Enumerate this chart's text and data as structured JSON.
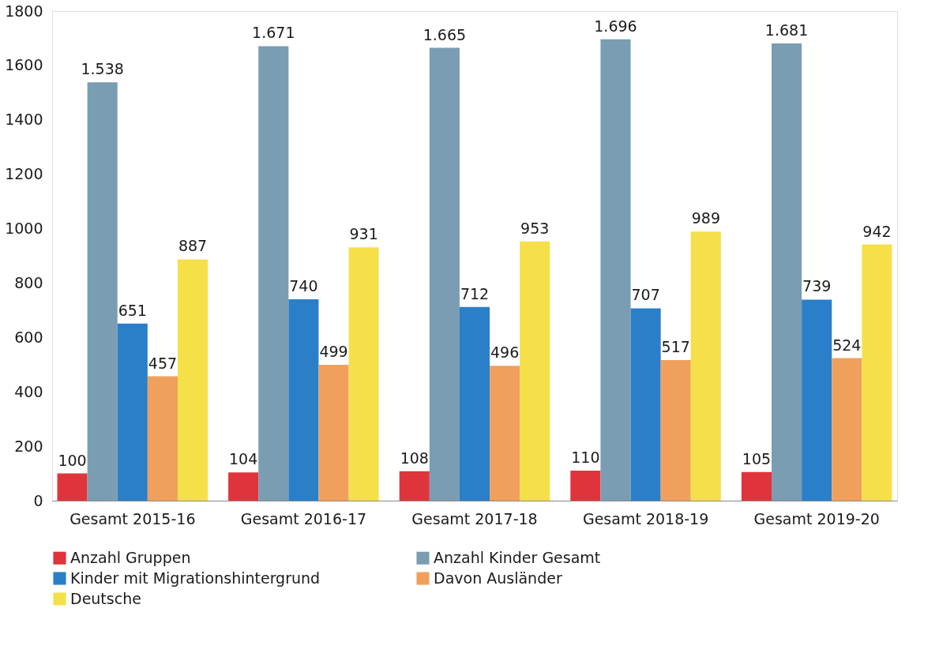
{
  "chart_data": {
    "type": "bar",
    "categories": [
      "Gesamt 2015-16",
      "Gesamt 2016-17",
      "Gesamt 2017-18",
      "Gesamt 2018-19",
      "Gesamt 2019-20"
    ],
    "series": [
      {
        "name": "Anzahl Gruppen",
        "color": "#e0343c",
        "values": [
          100,
          104,
          108,
          110,
          105
        ],
        "value_labels": [
          "100",
          "104",
          "108",
          "110",
          "105"
        ]
      },
      {
        "name": "Anzahl Kinder Gesamt",
        "color": "#7a9db2",
        "values": [
          1538,
          1671,
          1665,
          1696,
          1681
        ],
        "value_labels": [
          "1.538",
          "1.671",
          "1.665",
          "1.696",
          "1.681"
        ]
      },
      {
        "name": "Kinder mit Migrationshintergrund",
        "color": "#2a7fc8",
        "values": [
          651,
          740,
          712,
          707,
          739
        ],
        "value_labels": [
          "651",
          "740",
          "712",
          "707",
          "739"
        ]
      },
      {
        "name": "Davon Ausländer",
        "color": "#f0a05c",
        "values": [
          457,
          499,
          496,
          517,
          524
        ],
        "value_labels": [
          "457",
          "499",
          "496",
          "517",
          "524"
        ]
      },
      {
        "name": "Deutsche",
        "color": "#f5e04a",
        "values": [
          887,
          931,
          953,
          989,
          942
        ],
        "value_labels": [
          "887",
          "931",
          "953",
          "989",
          "942"
        ]
      }
    ],
    "ylim": [
      0,
      1800
    ],
    "yticks": [
      0,
      200,
      400,
      600,
      800,
      1000,
      1200,
      1400,
      1600,
      1800
    ],
    "grid": false,
    "legend": "bottom"
  }
}
